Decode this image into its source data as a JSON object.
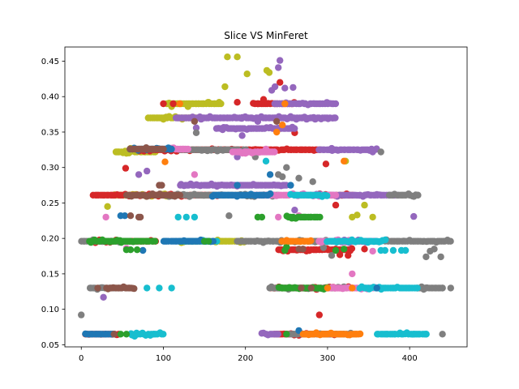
{
  "chart_data": {
    "type": "scatter",
    "title": "Slice VS MinFeret",
    "xlabel": "",
    "ylabel": "",
    "xlim": [
      -20,
      470
    ],
    "ylim": [
      0.047,
      0.47
    ],
    "x_ticks": [
      0,
      100,
      200,
      300,
      400
    ],
    "y_ticks": [
      0.05,
      0.1,
      0.15,
      0.2,
      0.25,
      0.3,
      0.35,
      0.4,
      0.45
    ],
    "y_tick_labels": [
      "0.05",
      "0.10",
      "0.15",
      "0.20",
      "0.25",
      "0.30",
      "0.35",
      "0.40",
      "0.45"
    ],
    "grid": false,
    "legend": "none",
    "colors": {
      "blue": "#1f77b4",
      "orange": "#ff7f0e",
      "green": "#2ca02c",
      "red": "#d62728",
      "purple": "#9467bd",
      "brown": "#8c564b",
      "pink": "#e377c2",
      "gray": "#7f7f7f",
      "olive": "#bcbd22",
      "cyan": "#17becf"
    },
    "series": [
      {
        "color": "olive",
        "points": [
          [
            178,
            0.456
          ],
          [
            190,
            0.456
          ],
          [
            202,
            0.432
          ],
          [
            226,
            0.437
          ],
          [
            229,
            0.434
          ],
          [
            175,
            0.414
          ],
          [
            155,
            0.392
          ],
          [
            143,
            0.39
          ],
          [
            120,
            0.39
          ],
          [
            110,
            0.386
          ],
          [
            100,
            0.368
          ],
          [
            130,
            0.386
          ],
          [
            168,
            0.392
          ],
          [
            45,
            0.322
          ],
          [
            55,
            0.32
          ],
          [
            60,
            0.327
          ],
          [
            40,
            0.261
          ],
          [
            32,
            0.245
          ],
          [
            322,
            0.309
          ],
          [
            345,
            0.247
          ],
          [
            330,
            0.23
          ],
          [
            336,
            0.233
          ],
          [
            355,
            0.23
          ]
        ],
        "bands": [
          [
            0.39,
            105,
            170
          ],
          [
            0.37,
            82,
            140
          ],
          [
            0.322,
            42,
            90
          ],
          [
            0.261,
            40,
            110
          ],
          [
            0.196,
            120,
            200
          ]
        ]
      },
      {
        "color": "red",
        "points": [
          [
            242,
            0.42
          ],
          [
            222,
            0.396
          ],
          [
            190,
            0.392
          ],
          [
            215,
            0.39
          ],
          [
            100,
            0.39
          ],
          [
            112,
            0.39
          ],
          [
            260,
            0.349
          ],
          [
            54,
            0.299
          ],
          [
            298,
            0.305
          ],
          [
            310,
            0.247
          ],
          [
            290,
            0.092
          ],
          [
            315,
            0.177
          ],
          [
            325,
            0.176
          ],
          [
            190,
            0.325
          ],
          [
            345,
            0.185
          ],
          [
            310,
            0.185
          ]
        ],
        "bands": [
          [
            0.39,
            210,
            260
          ],
          [
            0.325,
            70,
            290
          ],
          [
            0.261,
            15,
            170
          ],
          [
            0.261,
            290,
            330
          ],
          [
            0.196,
            15,
            90
          ],
          [
            0.184,
            240,
            330
          ],
          [
            0.13,
            230,
            330
          ],
          [
            0.065,
            235,
            310
          ],
          [
            0.065,
            5,
            45
          ]
        ]
      },
      {
        "color": "purple",
        "points": [
          [
            242,
            0.451
          ],
          [
            240,
            0.441
          ],
          [
            232,
            0.409
          ],
          [
            236,
            0.414
          ],
          [
            248,
            0.412
          ],
          [
            258,
            0.413
          ],
          [
            215,
            0.365
          ],
          [
            172,
            0.354
          ],
          [
            196,
            0.345
          ],
          [
            305,
            0.327
          ],
          [
            355,
            0.322
          ],
          [
            360,
            0.262
          ],
          [
            405,
            0.231
          ],
          [
            27,
            0.117
          ],
          [
            140,
            0.356
          ],
          [
            190,
            0.315
          ],
          [
            260,
            0.24
          ],
          [
            80,
            0.295
          ],
          [
            70,
            0.29
          ]
        ],
        "bands": [
          [
            0.39,
            235,
            310
          ],
          [
            0.37,
            115,
            310
          ],
          [
            0.355,
            165,
            260
          ],
          [
            0.325,
            290,
            360
          ],
          [
            0.261,
            280,
            385
          ],
          [
            0.275,
            120,
            250
          ],
          [
            0.196,
            305,
            360
          ],
          [
            0.065,
            220,
            240
          ]
        ]
      },
      {
        "color": "gray",
        "points": [
          [
            0,
            0.092
          ],
          [
            365,
            0.322
          ],
          [
            245,
            0.287
          ],
          [
            240,
            0.29
          ],
          [
            265,
            0.285
          ],
          [
            282,
            0.28
          ],
          [
            392,
            0.261
          ],
          [
            400,
            0.261
          ],
          [
            410,
            0.261
          ],
          [
            438,
            0.174
          ],
          [
            420,
            0.174
          ],
          [
            425,
            0.182
          ],
          [
            430,
            0.185
          ],
          [
            305,
            0.176
          ],
          [
            295,
            0.187
          ],
          [
            285,
            0.195
          ],
          [
            440,
            0.065
          ],
          [
            140,
            0.349
          ],
          [
            180,
            0.232
          ],
          [
            130,
            0.325
          ],
          [
            250,
            0.3
          ],
          [
            212,
            0.315
          ],
          [
            420,
            0.13
          ],
          [
            440,
            0.13
          ],
          [
            450,
            0.13
          ]
        ],
        "bands": [
          [
            0.325,
            120,
            200
          ],
          [
            0.261,
            100,
            240
          ],
          [
            0.261,
            375,
            410
          ],
          [
            0.196,
            190,
            300
          ],
          [
            0.196,
            370,
            450
          ],
          [
            0.196,
            0,
            60
          ],
          [
            0.13,
            230,
            320
          ],
          [
            0.13,
            10,
            50
          ],
          [
            0.065,
            255,
            330
          ],
          [
            0.13,
            410,
            440
          ]
        ]
      },
      {
        "color": "pink",
        "points": [
          [
            138,
            0.29
          ],
          [
            30,
            0.23
          ],
          [
            240,
            0.23
          ],
          [
            265,
            0.232
          ],
          [
            330,
            0.15
          ],
          [
            200,
            0.32
          ],
          [
            215,
            0.322
          ],
          [
            225,
            0.326
          ],
          [
            55,
            0.186
          ],
          [
            350,
            0.13
          ],
          [
            355,
            0.182
          ]
        ],
        "bands": [
          [
            0.322,
            185,
            235
          ],
          [
            0.261,
            210,
            310
          ],
          [
            0.196,
            290,
            340
          ],
          [
            0.13,
            300,
            360
          ],
          [
            0.326,
            110,
            130
          ]
        ]
      },
      {
        "color": "cyan",
        "points": [
          [
            225,
            0.309
          ],
          [
            118,
            0.23
          ],
          [
            128,
            0.23
          ],
          [
            138,
            0.23
          ],
          [
            160,
            0.196
          ],
          [
            165,
            0.196
          ],
          [
            255,
            0.262
          ],
          [
            110,
            0.13
          ],
          [
            95,
            0.13
          ],
          [
            80,
            0.13
          ],
          [
            370,
            0.183
          ],
          [
            380,
            0.183
          ],
          [
            390,
            0.183
          ],
          [
            395,
            0.183
          ],
          [
            365,
            0.183
          ],
          [
            405,
            0.065
          ],
          [
            420,
            0.065
          ],
          [
            65,
            0.062
          ],
          [
            88,
            0.065
          ],
          [
            265,
            0.196
          ]
        ],
        "bands": [
          [
            0.196,
            120,
            155
          ],
          [
            0.261,
            260,
            300
          ],
          [
            0.065,
            60,
            100
          ],
          [
            0.065,
            360,
            420
          ],
          [
            0.196,
            300,
            370
          ],
          [
            0.13,
            340,
            410
          ]
        ]
      },
      {
        "color": "blue",
        "points": [
          [
            230,
            0.29
          ],
          [
            255,
            0.275
          ],
          [
            48,
            0.232
          ],
          [
            53,
            0.232
          ],
          [
            265,
            0.07
          ],
          [
            360,
            0.13
          ],
          [
            190,
            0.275
          ],
          [
            300,
            0.065
          ],
          [
            75,
            0.183
          ]
        ],
        "bands": [
          [
            0.261,
            160,
            230
          ],
          [
            0.326,
            60,
            110
          ],
          [
            0.196,
            100,
            160
          ],
          [
            0.065,
            5,
            40
          ]
        ]
      },
      {
        "color": "green",
        "points": [
          [
            215,
            0.23
          ],
          [
            220,
            0.23
          ],
          [
            258,
            0.23
          ],
          [
            272,
            0.23
          ],
          [
            150,
            0.196
          ],
          [
            155,
            0.196
          ],
          [
            55,
            0.184
          ],
          [
            68,
            0.184
          ],
          [
            60,
            0.184
          ],
          [
            250,
            0.188
          ],
          [
            320,
            0.185
          ],
          [
            310,
            0.183
          ],
          [
            248,
            0.183
          ],
          [
            245,
            0.13
          ],
          [
            250,
            0.065
          ],
          [
            55,
            0.065
          ],
          [
            48,
            0.065
          ]
        ],
        "bands": [
          [
            0.196,
            10,
            90
          ],
          [
            0.23,
            250,
            290
          ],
          [
            0.13,
            240,
            300
          ]
        ]
      },
      {
        "color": "orange",
        "points": [
          [
            102,
            0.308
          ],
          [
            238,
            0.35
          ],
          [
            245,
            0.36
          ],
          [
            248,
            0.39
          ],
          [
            320,
            0.309
          ],
          [
            330,
            0.13
          ],
          [
            335,
            0.065
          ],
          [
            120,
            0.39
          ],
          [
            300,
            0.13
          ],
          [
            275,
            0.065
          ]
        ],
        "bands": [
          [
            0.065,
            270,
            340
          ],
          [
            0.196,
            245,
            280
          ]
        ]
      },
      {
        "color": "brown",
        "points": [
          [
            138,
            0.365
          ],
          [
            20,
            0.13
          ],
          [
            58,
            0.13
          ],
          [
            60,
            0.232
          ],
          [
            70,
            0.23
          ],
          [
            72,
            0.23
          ],
          [
            95,
            0.275
          ],
          [
            98,
            0.275
          ],
          [
            265,
            0.185
          ],
          [
            270,
            0.185
          ],
          [
            280,
            0.13
          ],
          [
            268,
            0.13
          ],
          [
            40,
            0.065
          ],
          [
            238,
            0.365
          ]
        ],
        "bands": [
          [
            0.13,
            30,
            65
          ],
          [
            0.261,
            55,
            120
          ],
          [
            0.326,
            60,
            100
          ]
        ]
      }
    ]
  }
}
